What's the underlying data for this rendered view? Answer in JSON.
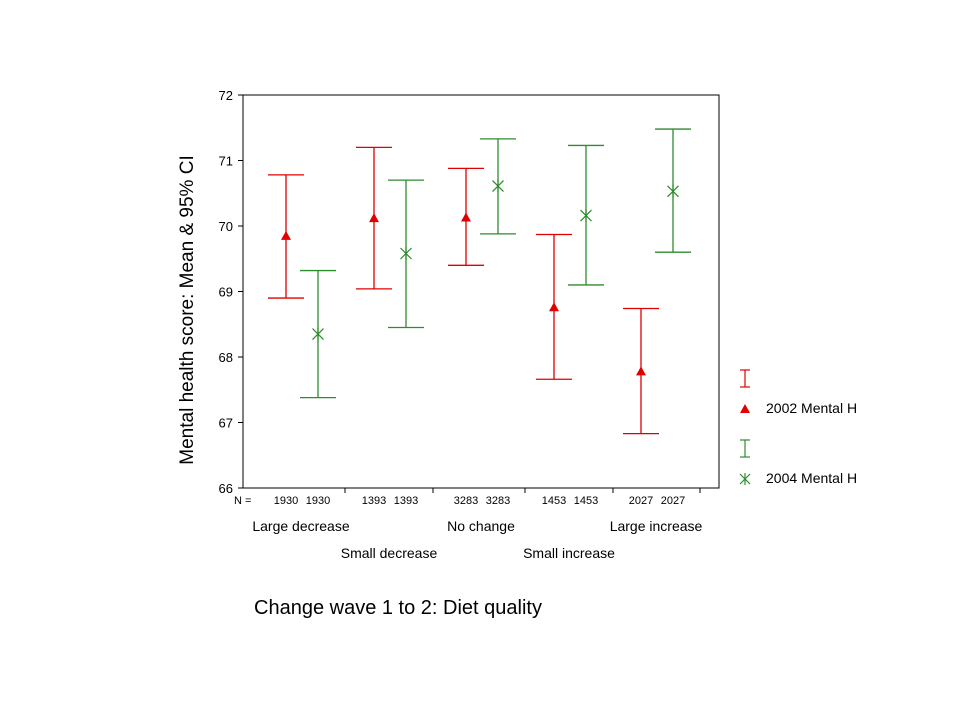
{
  "chart_data": {
    "type": "errorbar",
    "ylabel": "Mental health score: Mean & 95% CI",
    "xlabel": "Change wave 1 to 2: Diet quality",
    "ylim": [
      66,
      72
    ],
    "yticks": [
      "66",
      "67",
      "68",
      "69",
      "70",
      "71",
      "72"
    ],
    "categories": [
      "Large decrease",
      "Small decrease",
      "No change",
      "Small increase",
      "Large increase"
    ],
    "n_label": "N =",
    "n_values": [
      [
        "1930",
        "1930"
      ],
      [
        "1393",
        "1393"
      ],
      [
        "3283",
        "3283"
      ],
      [
        "1453",
        "1453"
      ],
      [
        "2027",
        "2027"
      ]
    ],
    "series": [
      {
        "name": "2002 Mental H",
        "color": "#e00000",
        "marker": "triangle",
        "mean": [
          69.85,
          70.12,
          70.13,
          68.76,
          67.78
        ],
        "lower": [
          68.9,
          69.04,
          69.4,
          67.66,
          66.83
        ],
        "upper": [
          70.78,
          71.2,
          70.88,
          69.87,
          68.74
        ]
      },
      {
        "name": "2004 Mental H",
        "color": "#2e8b2e",
        "marker": "asterisk",
        "mean": [
          68.35,
          69.58,
          70.61,
          70.16,
          70.53
        ],
        "lower": [
          67.38,
          68.45,
          69.88,
          69.1,
          69.6
        ],
        "upper": [
          69.32,
          70.7,
          71.33,
          71.23,
          71.48
        ]
      }
    ],
    "legend": "right",
    "grid": false
  }
}
